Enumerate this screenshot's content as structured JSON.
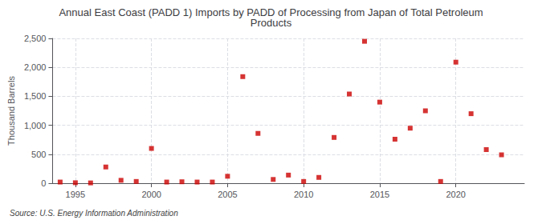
{
  "chart_data": {
    "type": "scatter",
    "title": "Annual East Coast (PADD 1) Imports by PADD of Processing from Japan of Total Petroleum\nProducts",
    "ylabel": "Thousand Barrels",
    "annotations": [
      "Source: U.S. Energy Information Administration"
    ],
    "x": [
      1994,
      1995,
      1996,
      1997,
      1998,
      1999,
      2000,
      2001,
      2002,
      2003,
      2004,
      2005,
      2006,
      2007,
      2008,
      2009,
      2010,
      2011,
      2012,
      2013,
      2014,
      2015,
      2016,
      2017,
      2018,
      2019,
      2020,
      2021,
      2022,
      2023
    ],
    "values": [
      20,
      8,
      5,
      280,
      50,
      30,
      600,
      20,
      25,
      20,
      20,
      120,
      1840,
      860,
      65,
      140,
      30,
      100,
      790,
      1540,
      2450,
      1400,
      760,
      950,
      1250,
      30,
      2090,
      1200,
      580,
      490
    ],
    "color": "#cc0000",
    "marker": "square",
    "xlim": [
      1993.5,
      2024.5
    ],
    "xticks": [
      1995,
      2000,
      2005,
      2010,
      2015,
      2020
    ],
    "ylim": [
      0,
      2500
    ],
    "yticks": [
      0,
      500,
      {
        "value": 1000,
        "label": "1,000"
      },
      {
        "value": 1500,
        "label": "1,500"
      },
      {
        "value": 2000,
        "label": "2,000"
      },
      {
        "value": 2500,
        "label": "2,500"
      }
    ],
    "grid": true
  }
}
